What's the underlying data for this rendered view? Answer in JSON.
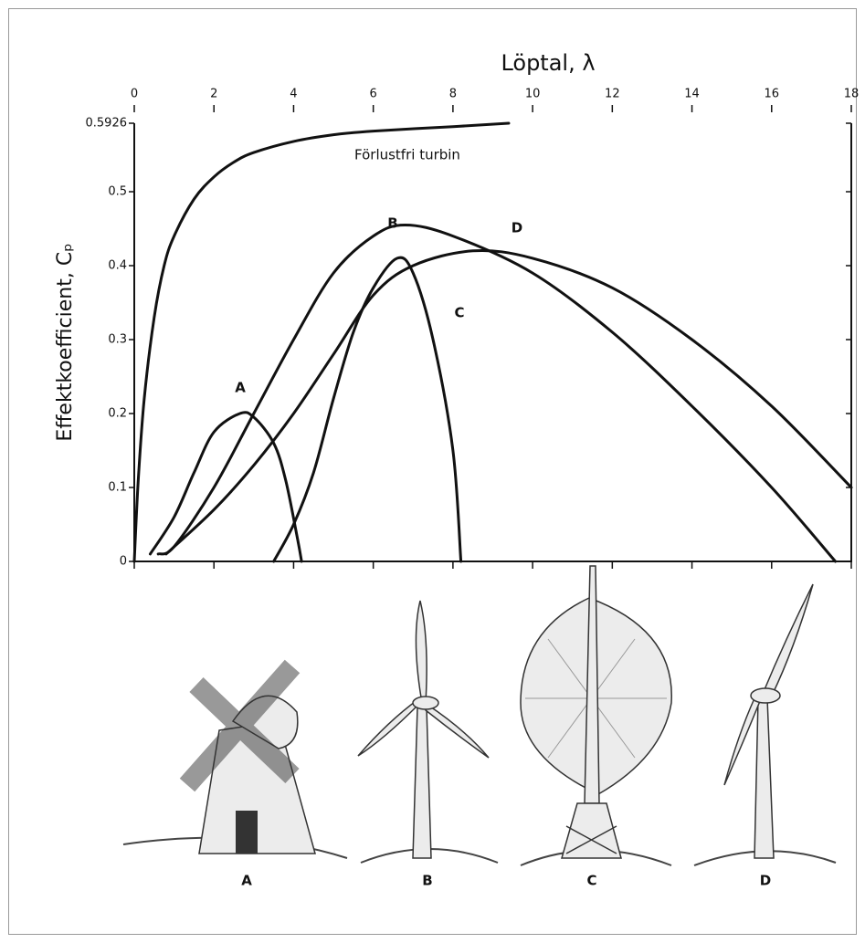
{
  "chart_data": {
    "type": "line",
    "x_label": "Löptal, λ",
    "y_label": "Effektkoefficient, Cₚ",
    "xlim": [
      0,
      18
    ],
    "xticks": [
      0,
      2,
      4,
      6,
      8,
      10,
      12,
      14,
      16,
      18
    ],
    "ylim": [
      0,
      0.5926
    ],
    "yticks": [
      0,
      0.1,
      0.2,
      0.3,
      0.4,
      0.5,
      0.5926
    ],
    "grid": false,
    "series": [
      {
        "name": "Förlustfri turbin",
        "color": "#111111",
        "x": [
          0,
          0.1,
          0.25,
          0.5,
          0.75,
          1,
          1.5,
          2,
          2.5,
          3,
          4,
          5,
          6,
          8,
          9.4
        ],
        "values": [
          0,
          0.11,
          0.22,
          0.33,
          0.4,
          0.44,
          0.49,
          0.52,
          0.54,
          0.553,
          0.568,
          0.577,
          0.582,
          0.588,
          0.5926
        ]
      },
      {
        "name": "A",
        "color": "#111111",
        "x": [
          0.4,
          1,
          1.5,
          2,
          2.65,
          3,
          3.5,
          3.8,
          4.1,
          4.2
        ],
        "values": [
          0.01,
          0.06,
          0.12,
          0.175,
          0.2,
          0.195,
          0.16,
          0.11,
          0.03,
          0
        ]
      },
      {
        "name": "B",
        "color": "#111111",
        "x": [
          0.6,
          1,
          2,
          3,
          4,
          5,
          6,
          6.8,
          8,
          10,
          12,
          14,
          16,
          17.6
        ],
        "values": [
          0.01,
          0.02,
          0.1,
          0.2,
          0.3,
          0.39,
          0.44,
          0.455,
          0.44,
          0.39,
          0.31,
          0.21,
          0.1,
          0
        ]
      },
      {
        "name": "C",
        "color": "#111111",
        "x": [
          3.5,
          4,
          4.5,
          5,
          5.5,
          6,
          6.6,
          7,
          7.5,
          8,
          8.2
        ],
        "values": [
          0,
          0.05,
          0.12,
          0.22,
          0.31,
          0.37,
          0.41,
          0.39,
          0.3,
          0.15,
          0
        ]
      },
      {
        "name": "D",
        "color": "#111111",
        "x": [
          0.8,
          2,
          3,
          4,
          5,
          6,
          7,
          8.5,
          10,
          12,
          14,
          16,
          18
        ],
        "values": [
          0.01,
          0.07,
          0.13,
          0.2,
          0.28,
          0.36,
          0.4,
          0.42,
          0.41,
          0.37,
          0.3,
          0.21,
          0.1
        ]
      }
    ],
    "illustration_labels": [
      "A",
      "B",
      "C",
      "D"
    ]
  }
}
